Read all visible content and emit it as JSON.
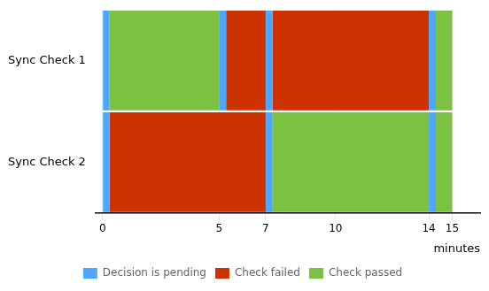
{
  "chart_data": {
    "type": "bar",
    "orientation": "horizontal",
    "categories": [
      "Sync Check 1",
      "Sync Check 2"
    ],
    "series": [
      {
        "name": "Decision is pending",
        "color": "#4da6ff",
        "values": [
          [
            [
              0,
              0.3
            ],
            [
              5,
              5.3
            ],
            [
              7,
              7.3
            ],
            [
              14,
              14.3
            ]
          ],
          [
            [
              0,
              0.3
            ],
            [
              7,
              7.3
            ],
            [
              14,
              14.3
            ]
          ]
        ]
      },
      {
        "name": "Check failed",
        "color": "#cc3300",
        "values": [
          [
            [
              5.3,
              7
            ],
            [
              7.3,
              14
            ]
          ],
          [
            [
              0.3,
              7
            ]
          ]
        ]
      },
      {
        "name": "Check passed",
        "color": "#7dc142",
        "values": [
          [
            [
              0.3,
              5
            ],
            [
              14.3,
              15
            ]
          ],
          [
            [
              7.3,
              14
            ],
            [
              14.3,
              15
            ]
          ]
        ]
      }
    ],
    "xlabel": "minutes",
    "xlim": [
      -0.3,
      16.2
    ],
    "xticks": [
      0,
      5,
      7,
      10,
      14,
      15
    ],
    "grid": true,
    "legend": "bottom"
  }
}
